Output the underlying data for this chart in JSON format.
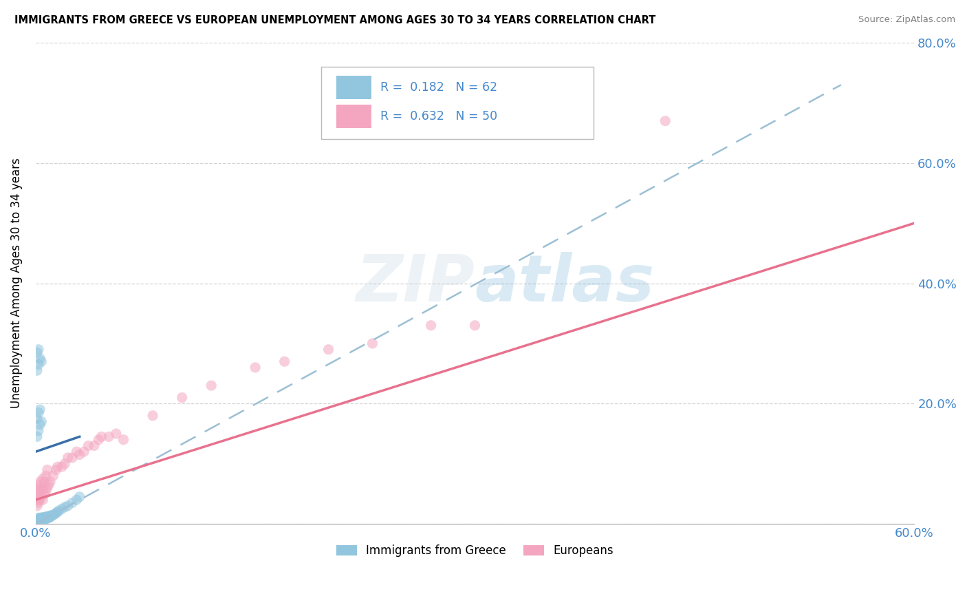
{
  "title": "IMMIGRANTS FROM GREECE VS EUROPEAN UNEMPLOYMENT AMONG AGES 30 TO 34 YEARS CORRELATION CHART",
  "source": "Source: ZipAtlas.com",
  "watermark": "ZIPatlas",
  "legend_blue": {
    "R": 0.182,
    "N": 62,
    "label": "Immigrants from Greece"
  },
  "legend_pink": {
    "R": 0.632,
    "N": 50,
    "label": "Europeans"
  },
  "xlim": [
    0.0,
    0.6
  ],
  "ylim": [
    0.0,
    0.8
  ],
  "blue_color": "#92c5de",
  "pink_color": "#f4a6c0",
  "blue_line_color": "#3a6fa8",
  "pink_line_color": "#e8728e",
  "dashed_line_color": "#9bbfd4",
  "axis_color": "#4488cc",
  "grid_color": "#d0d0d0",
  "blue_scatter": {
    "x": [
      0.001,
      0.001,
      0.001,
      0.001,
      0.002,
      0.002,
      0.002,
      0.002,
      0.002,
      0.002,
      0.002,
      0.003,
      0.003,
      0.003,
      0.003,
      0.003,
      0.003,
      0.004,
      0.004,
      0.004,
      0.004,
      0.005,
      0.005,
      0.005,
      0.005,
      0.006,
      0.006,
      0.006,
      0.007,
      0.007,
      0.007,
      0.008,
      0.008,
      0.009,
      0.009,
      0.01,
      0.01,
      0.011,
      0.012,
      0.013,
      0.014,
      0.015,
      0.016,
      0.018,
      0.02,
      0.022,
      0.025,
      0.028,
      0.03,
      0.001,
      0.001,
      0.002,
      0.002,
      0.003,
      0.003,
      0.004,
      0.001,
      0.001,
      0.002,
      0.002,
      0.003,
      0.004
    ],
    "y": [
      0.003,
      0.004,
      0.005,
      0.006,
      0.003,
      0.004,
      0.005,
      0.006,
      0.007,
      0.008,
      0.01,
      0.004,
      0.005,
      0.006,
      0.007,
      0.008,
      0.01,
      0.005,
      0.006,
      0.008,
      0.01,
      0.006,
      0.007,
      0.009,
      0.011,
      0.007,
      0.009,
      0.011,
      0.008,
      0.01,
      0.012,
      0.009,
      0.012,
      0.01,
      0.013,
      0.011,
      0.014,
      0.013,
      0.015,
      0.016,
      0.018,
      0.02,
      0.022,
      0.025,
      0.028,
      0.03,
      0.035,
      0.04,
      0.045,
      0.145,
      0.175,
      0.155,
      0.185,
      0.165,
      0.19,
      0.17,
      0.255,
      0.285,
      0.265,
      0.29,
      0.275,
      0.27
    ]
  },
  "pink_scatter": {
    "x": [
      0.001,
      0.001,
      0.001,
      0.002,
      0.002,
      0.002,
      0.002,
      0.003,
      0.003,
      0.003,
      0.004,
      0.004,
      0.005,
      0.005,
      0.005,
      0.006,
      0.006,
      0.007,
      0.007,
      0.008,
      0.008,
      0.009,
      0.01,
      0.012,
      0.014,
      0.015,
      0.018,
      0.02,
      0.022,
      0.025,
      0.028,
      0.03,
      0.033,
      0.036,
      0.04,
      0.043,
      0.045,
      0.05,
      0.055,
      0.06,
      0.08,
      0.1,
      0.12,
      0.15,
      0.17,
      0.2,
      0.23,
      0.27,
      0.3,
      0.43
    ],
    "y": [
      0.03,
      0.045,
      0.06,
      0.035,
      0.04,
      0.05,
      0.065,
      0.04,
      0.055,
      0.07,
      0.045,
      0.06,
      0.04,
      0.055,
      0.075,
      0.05,
      0.07,
      0.055,
      0.08,
      0.06,
      0.09,
      0.065,
      0.07,
      0.08,
      0.09,
      0.095,
      0.095,
      0.1,
      0.11,
      0.11,
      0.12,
      0.115,
      0.12,
      0.13,
      0.13,
      0.14,
      0.145,
      0.145,
      0.15,
      0.14,
      0.18,
      0.21,
      0.23,
      0.26,
      0.27,
      0.29,
      0.3,
      0.33,
      0.33,
      0.67
    ]
  },
  "blue_line": {
    "x0": 0.0,
    "y0": 0.12,
    "x1": 0.03,
    "y1": 0.145
  },
  "pink_line": {
    "x0": 0.0,
    "y0": 0.04,
    "x1": 0.6,
    "y1": 0.5
  },
  "dash_line": {
    "x0": 0.0,
    "y0": 0.0,
    "x1": 0.55,
    "y1": 0.73
  }
}
